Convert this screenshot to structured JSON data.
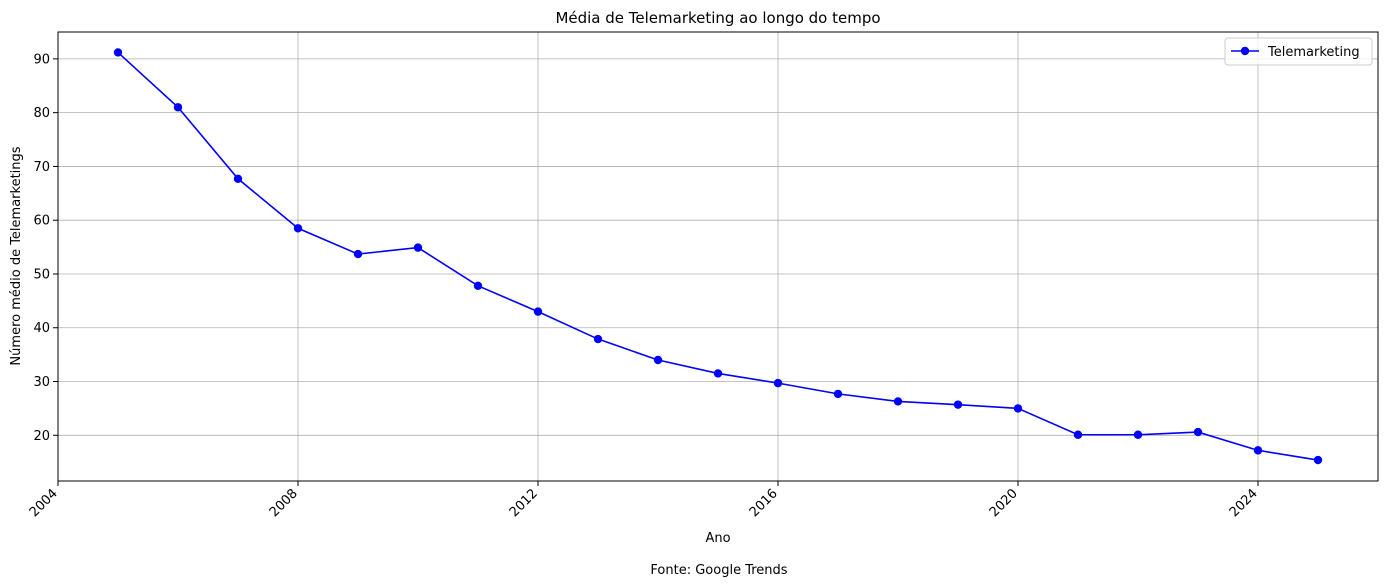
{
  "chart_data": {
    "type": "line",
    "title": "Média de Telemarketing ao longo do tempo",
    "xlabel": "Ano",
    "ylabel": "Número médio de Telemarketings",
    "caption": "Fonte: Google Trends",
    "xlim": [
      2004,
      2026
    ],
    "ylim": [
      11.5,
      95
    ],
    "x_ticks": [
      2004,
      2008,
      2012,
      2016,
      2020,
      2024
    ],
    "y_ticks": [
      20,
      30,
      40,
      50,
      60,
      70,
      80,
      90
    ],
    "grid": true,
    "legend_position": "top-right",
    "series": [
      {
        "name": "Telemarketing",
        "color": "#0000ff",
        "marker": "circle",
        "x": [
          2005,
          2006,
          2007,
          2008,
          2009,
          2010,
          2011,
          2012,
          2013,
          2014,
          2015,
          2016,
          2017,
          2018,
          2019,
          2020,
          2021,
          2022,
          2023,
          2024,
          2025
        ],
        "y": [
          91.2,
          81.0,
          67.7,
          58.5,
          53.7,
          54.9,
          47.8,
          43.0,
          37.9,
          34.0,
          31.5,
          29.7,
          27.7,
          26.3,
          25.7,
          25.0,
          20.1,
          20.1,
          20.6,
          17.2,
          15.4
        ]
      }
    ]
  }
}
